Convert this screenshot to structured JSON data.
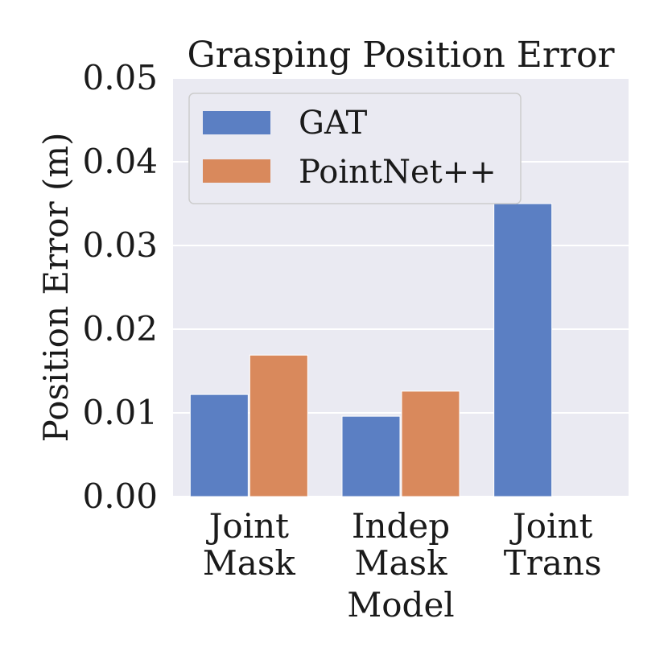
{
  "chart_data": {
    "type": "bar",
    "title": "Grasping Position Error",
    "xlabel": "Model",
    "ylabel": "Position Error (m)",
    "categories": [
      [
        "Joint",
        "Mask"
      ],
      [
        "Indep",
        "Mask"
      ],
      [
        "Joint",
        "Trans"
      ]
    ],
    "series": [
      {
        "name": "GAT",
        "color": "#5b7fc3",
        "values": [
          0.0122,
          0.0096,
          0.035
        ]
      },
      {
        "name": "PointNet++",
        "color": "#d9895c",
        "values": [
          0.0169,
          0.0126,
          null
        ]
      }
    ],
    "ylim": [
      0,
      0.05
    ],
    "yticks": [
      "0.00",
      "0.01",
      "0.02",
      "0.03",
      "0.04",
      "0.05"
    ],
    "grid": true,
    "legend_position": "top-left",
    "plot_background": "#eaeaf2"
  }
}
